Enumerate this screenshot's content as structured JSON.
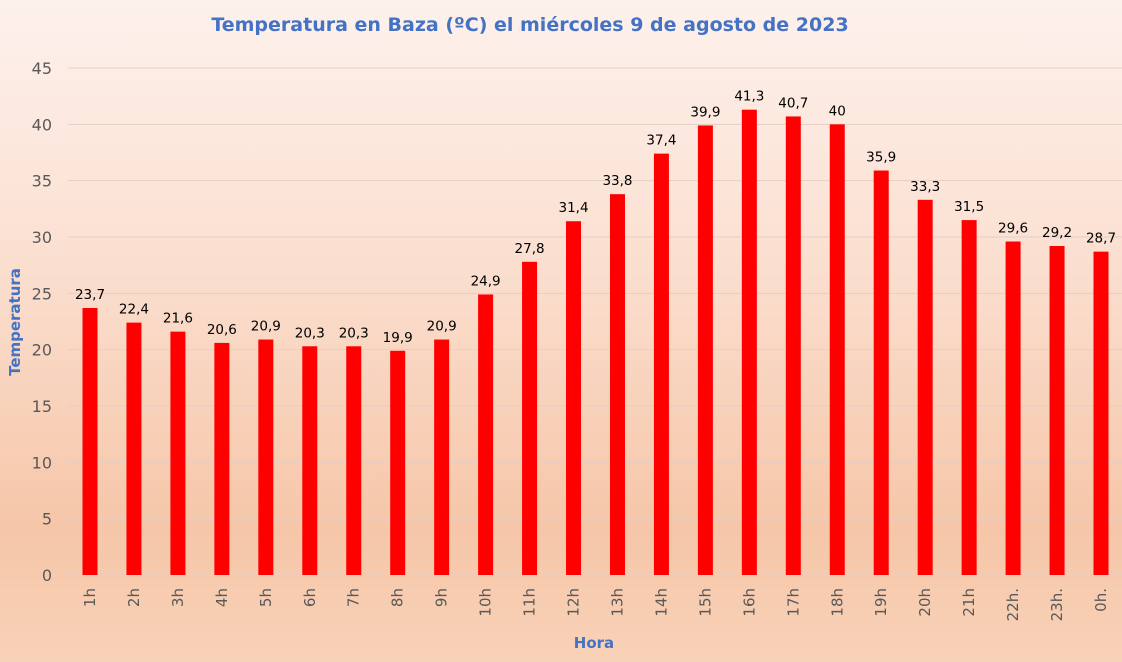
{
  "chart_data": {
    "type": "bar",
    "title": "Temperatura en Baza (ºC) el miércoles 9 de agosto de 2023",
    "xlabel": "Hora",
    "ylabel": "Temperatura",
    "ylim": [
      0,
      45
    ],
    "yticks": [
      0,
      5,
      10,
      15,
      20,
      25,
      30,
      35,
      40,
      45
    ],
    "grid": true,
    "legend": "none",
    "bar_color": "#ff0000",
    "categories": [
      "1h",
      "2h",
      "3h",
      "4h",
      "5h",
      "6h",
      "7h",
      "8h",
      "9h",
      "10h",
      "11h",
      "12h",
      "13h",
      "14h",
      "15h",
      "16h",
      "17h",
      "18h",
      "19h",
      "20h",
      "21h",
      "22h.",
      "23h.",
      "0h."
    ],
    "values": [
      23.7,
      22.4,
      21.6,
      20.6,
      20.9,
      20.3,
      20.3,
      19.9,
      20.9,
      24.9,
      27.8,
      31.4,
      33.8,
      37.4,
      39.9,
      41.3,
      40.7,
      40,
      35.9,
      33.3,
      31.5,
      29.6,
      29.2,
      28.7
    ],
    "data_labels": [
      "23,7",
      "22,4",
      "21,6",
      "20,6",
      "20,9",
      "20,3",
      "20,3",
      "19,9",
      "20,9",
      "24,9",
      "27,8",
      "31,4",
      "33,8",
      "37,4",
      "39,9",
      "41,3",
      "40,7",
      "40",
      "35,9",
      "33,3",
      "31,5",
      "29,6",
      "29,2",
      "28,7"
    ]
  }
}
